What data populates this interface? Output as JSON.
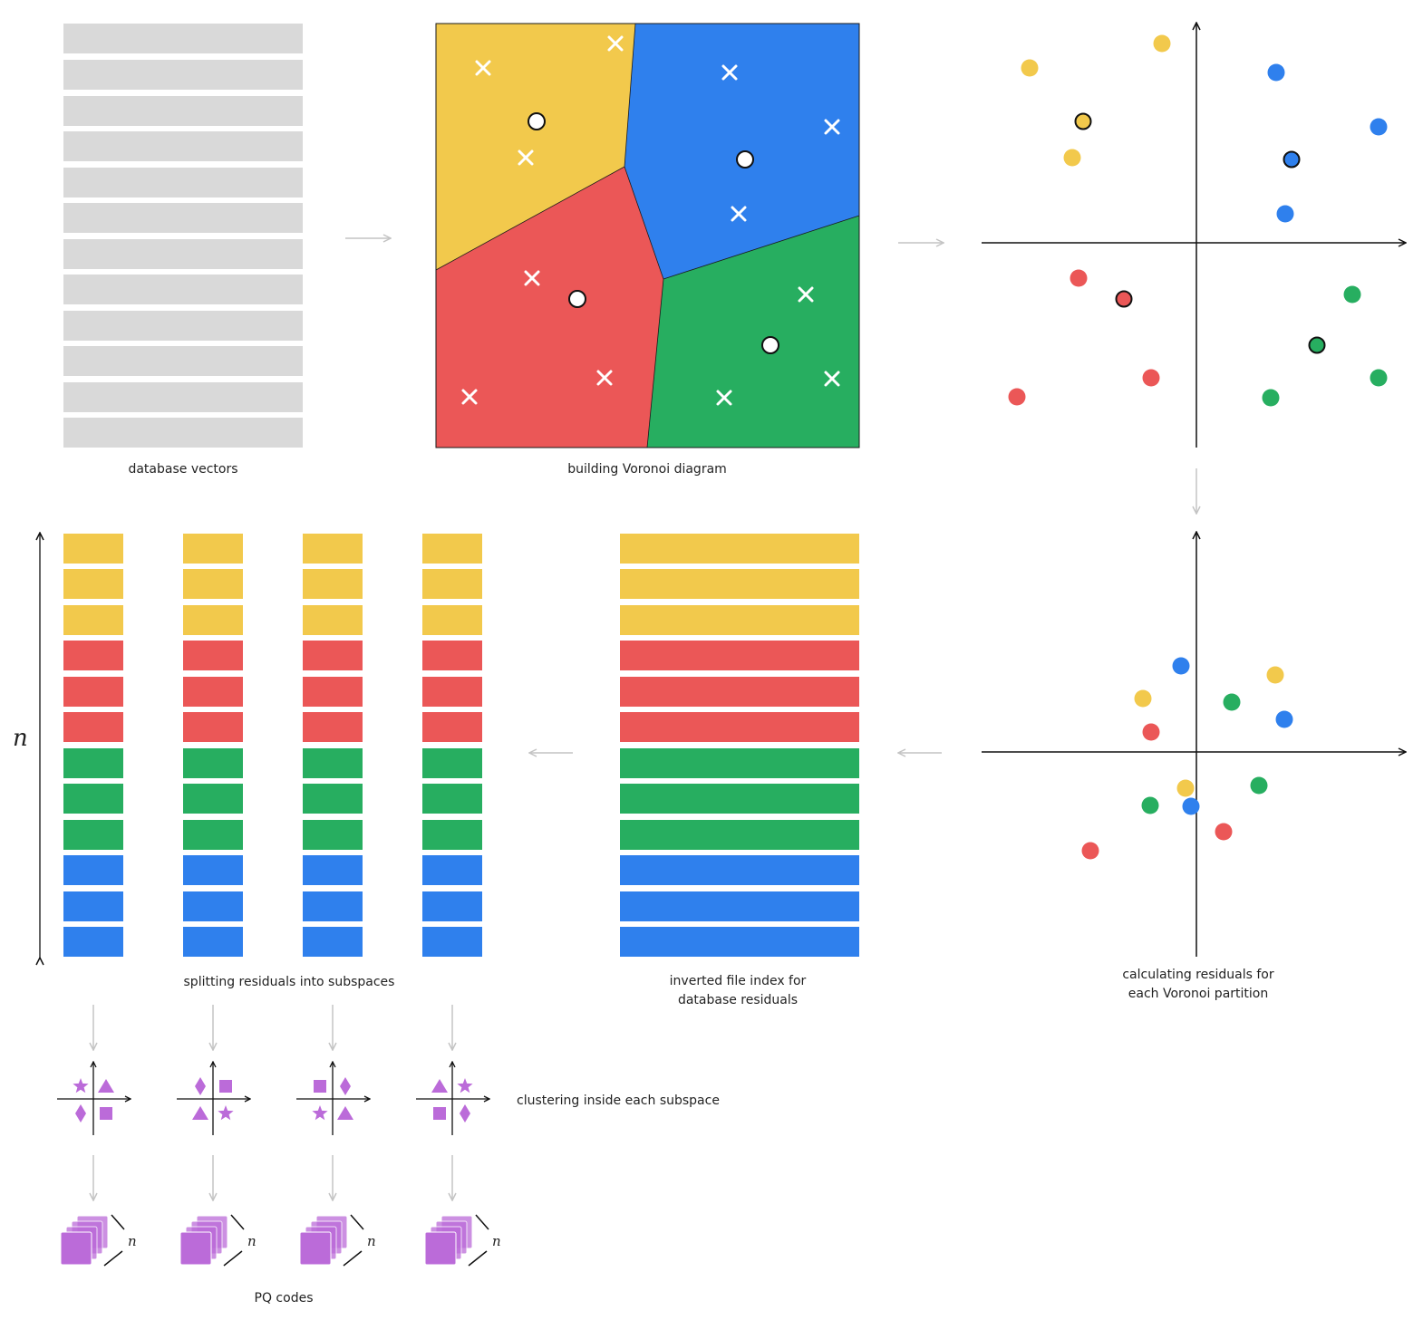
{
  "captions": {
    "database_vectors": "database vectors",
    "voronoi": "building Voronoi diagram",
    "residuals_line1": "calculating residuals for",
    "residuals_line2": "each Voronoi partition",
    "ivf_line1": "inverted file index for",
    "ivf_line2": "database residuals",
    "splitting": "splitting residuals into subspaces",
    "clustering": "clustering inside each subspace",
    "pq_codes": "PQ codes"
  },
  "dimension_label": "n",
  "pq_dimension_label": "n",
  "colors": {
    "yellow": "#F2C94C",
    "blue": "#2F80ED",
    "red": "#EB5757",
    "green": "#27AE60",
    "gray": "#D9D9D9",
    "purple": "#BB6BD9",
    "arrow": "#C4C4C4"
  },
  "partition_order": [
    "yellow",
    "yellow",
    "yellow",
    "red",
    "red",
    "red",
    "green",
    "green",
    "green",
    "blue",
    "blue",
    "blue"
  ],
  "subspace_count": 4
}
